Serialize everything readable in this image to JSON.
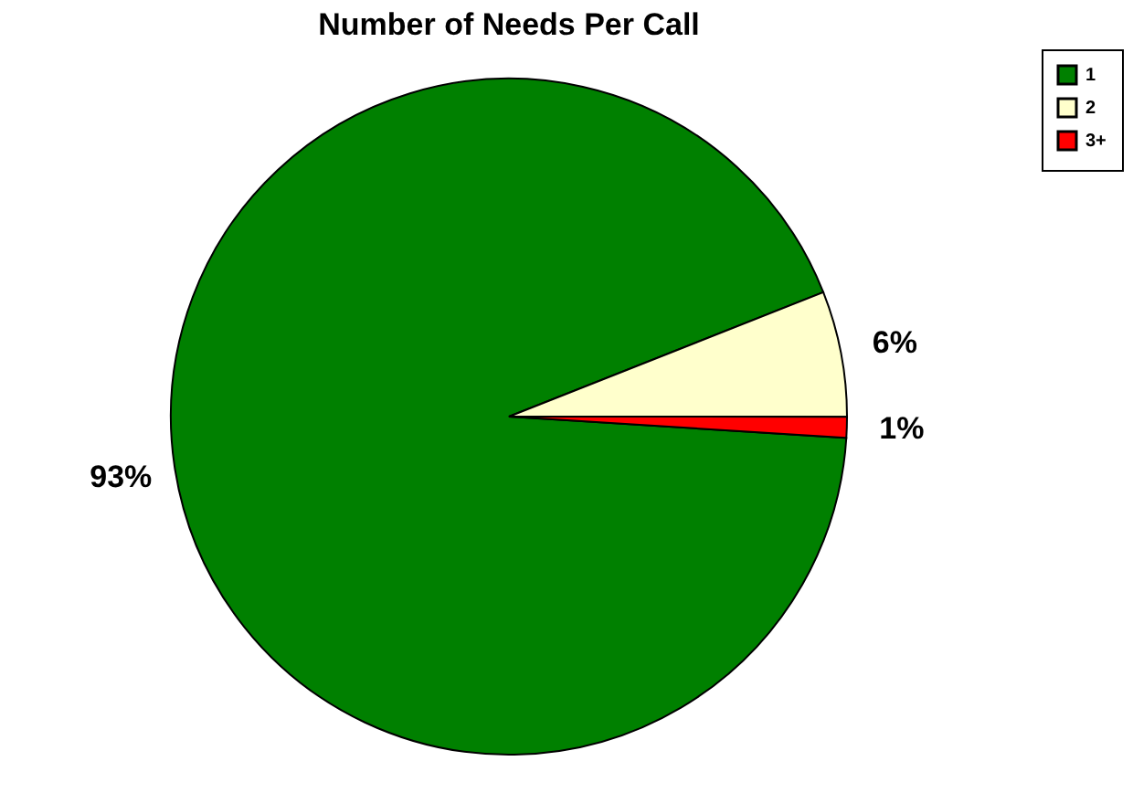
{
  "chart_data": {
    "type": "pie",
    "title": "Number of Needs Per Call",
    "categories": [
      "1",
      "2",
      "3+"
    ],
    "values": [
      93,
      6,
      1
    ],
    "value_labels": [
      "93%",
      "6%",
      "1%"
    ],
    "colors": [
      "#008000",
      "#ffffcc",
      "#ff0000"
    ],
    "legend": "right"
  }
}
